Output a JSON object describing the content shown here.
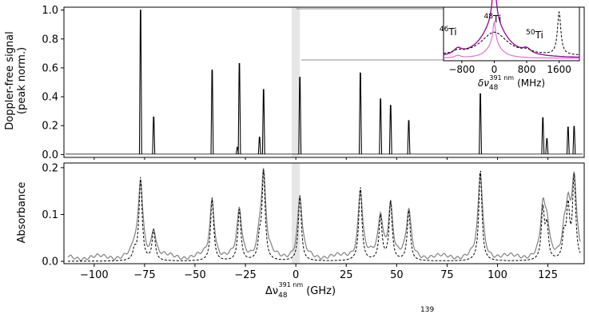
{
  "chart_data": [
    {
      "type": "line",
      "panel": "top",
      "ylabel_line1": "Doppler-free signal",
      "ylabel_line2": "(peak norm.)",
      "xlim": [
        -115,
        143
      ],
      "ylim": [
        -0.02,
        1.02
      ],
      "yticks": [
        "0.0",
        "0.2",
        "0.4",
        "0.6",
        "0.8",
        "1.0"
      ],
      "highlight_x_range": [
        -2,
        2
      ],
      "peaks": [
        {
          "x": -77,
          "y": 1.0
        },
        {
          "x": -70.5,
          "y": 0.26
        },
        {
          "x": -41.5,
          "y": 0.585
        },
        {
          "x": -29,
          "y": 0.05
        },
        {
          "x": -28,
          "y": 0.63
        },
        {
          "x": -18,
          "y": 0.12
        },
        {
          "x": -16,
          "y": 0.45
        },
        {
          "x": 2,
          "y": 0.535
        },
        {
          "x": 32,
          "y": 0.565
        },
        {
          "x": 42,
          "y": 0.385
        },
        {
          "x": 47,
          "y": 0.34
        },
        {
          "x": 56,
          "y": 0.235
        },
        {
          "x": 91.5,
          "y": 0.42
        },
        {
          "x": 122.5,
          "y": 0.255
        },
        {
          "x": 124.5,
          "y": 0.11
        },
        {
          "x": 135,
          "y": 0.19
        },
        {
          "x": 138,
          "y": 0.195
        }
      ]
    },
    {
      "type": "line",
      "panel": "bottom",
      "ylabel": "Absorbance",
      "xlabel_prefix": "Δν",
      "xlabel_sub": "48",
      "xlabel_sup": "391 nm",
      "xlabel_unit": "(GHz)",
      "xlim": [
        -115,
        143
      ],
      "ylim": [
        -0.005,
        0.21
      ],
      "yticks": [
        "0.0",
        "0.1",
        "0.2"
      ],
      "xticks": [
        "−100",
        "−75",
        "−50",
        "−25",
        "0",
        "25",
        "50",
        "75",
        "100",
        "125"
      ],
      "xtick_values": [
        -100,
        -75,
        -50,
        -25,
        0,
        25,
        50,
        75,
        100,
        125
      ],
      "highlight_x_range": [
        -2,
        2
      ],
      "peaks": [
        {
          "x": -80,
          "y": 0.02
        },
        {
          "x": -77,
          "y": 0.178
        },
        {
          "x": -70.5,
          "y": 0.065
        },
        {
          "x": -41.5,
          "y": 0.135
        },
        {
          "x": -28,
          "y": 0.11
        },
        {
          "x": -18,
          "y": 0.04
        },
        {
          "x": -16,
          "y": 0.19
        },
        {
          "x": 2,
          "y": 0.14
        },
        {
          "x": 32,
          "y": 0.16
        },
        {
          "x": 42,
          "y": 0.095
        },
        {
          "x": 47,
          "y": 0.125
        },
        {
          "x": 56,
          "y": 0.108
        },
        {
          "x": 91.5,
          "y": 0.198
        },
        {
          "x": 122.5,
          "y": 0.108
        },
        {
          "x": 124.5,
          "y": 0.07
        },
        {
          "x": 133,
          "y": 0.05
        },
        {
          "x": 135,
          "y": 0.11
        },
        {
          "x": 138,
          "y": 0.178
        }
      ]
    },
    {
      "type": "line",
      "panel": "inset",
      "xlabel_prefix": "δν",
      "xlabel_sub": "48",
      "xlabel_sup": "391 nm",
      "xlabel_unit": "(MHz)",
      "xticks": [
        "−800",
        "0",
        "800",
        "1600"
      ],
      "xtick_values": [
        -800,
        0,
        800,
        1600
      ],
      "xlim": [
        -1250,
        2100
      ],
      "isotope_labels": [
        {
          "mass": "46",
          "symbol": "Ti",
          "x": -900
        },
        {
          "mass": "48",
          "symbol": "Ti",
          "x": 0
        },
        {
          "mass": "50",
          "symbol": "Ti",
          "x": 800
        }
      ],
      "colors": {
        "outer": "#990099",
        "inner": "#dd66cc",
        "data": "#000000"
      }
    }
  ],
  "colors": {
    "data_trace": "#000000",
    "absorbance_trace": "#808080",
    "highlight_band": "#e6e6e6"
  },
  "footer": {
    "fragment": "139"
  }
}
